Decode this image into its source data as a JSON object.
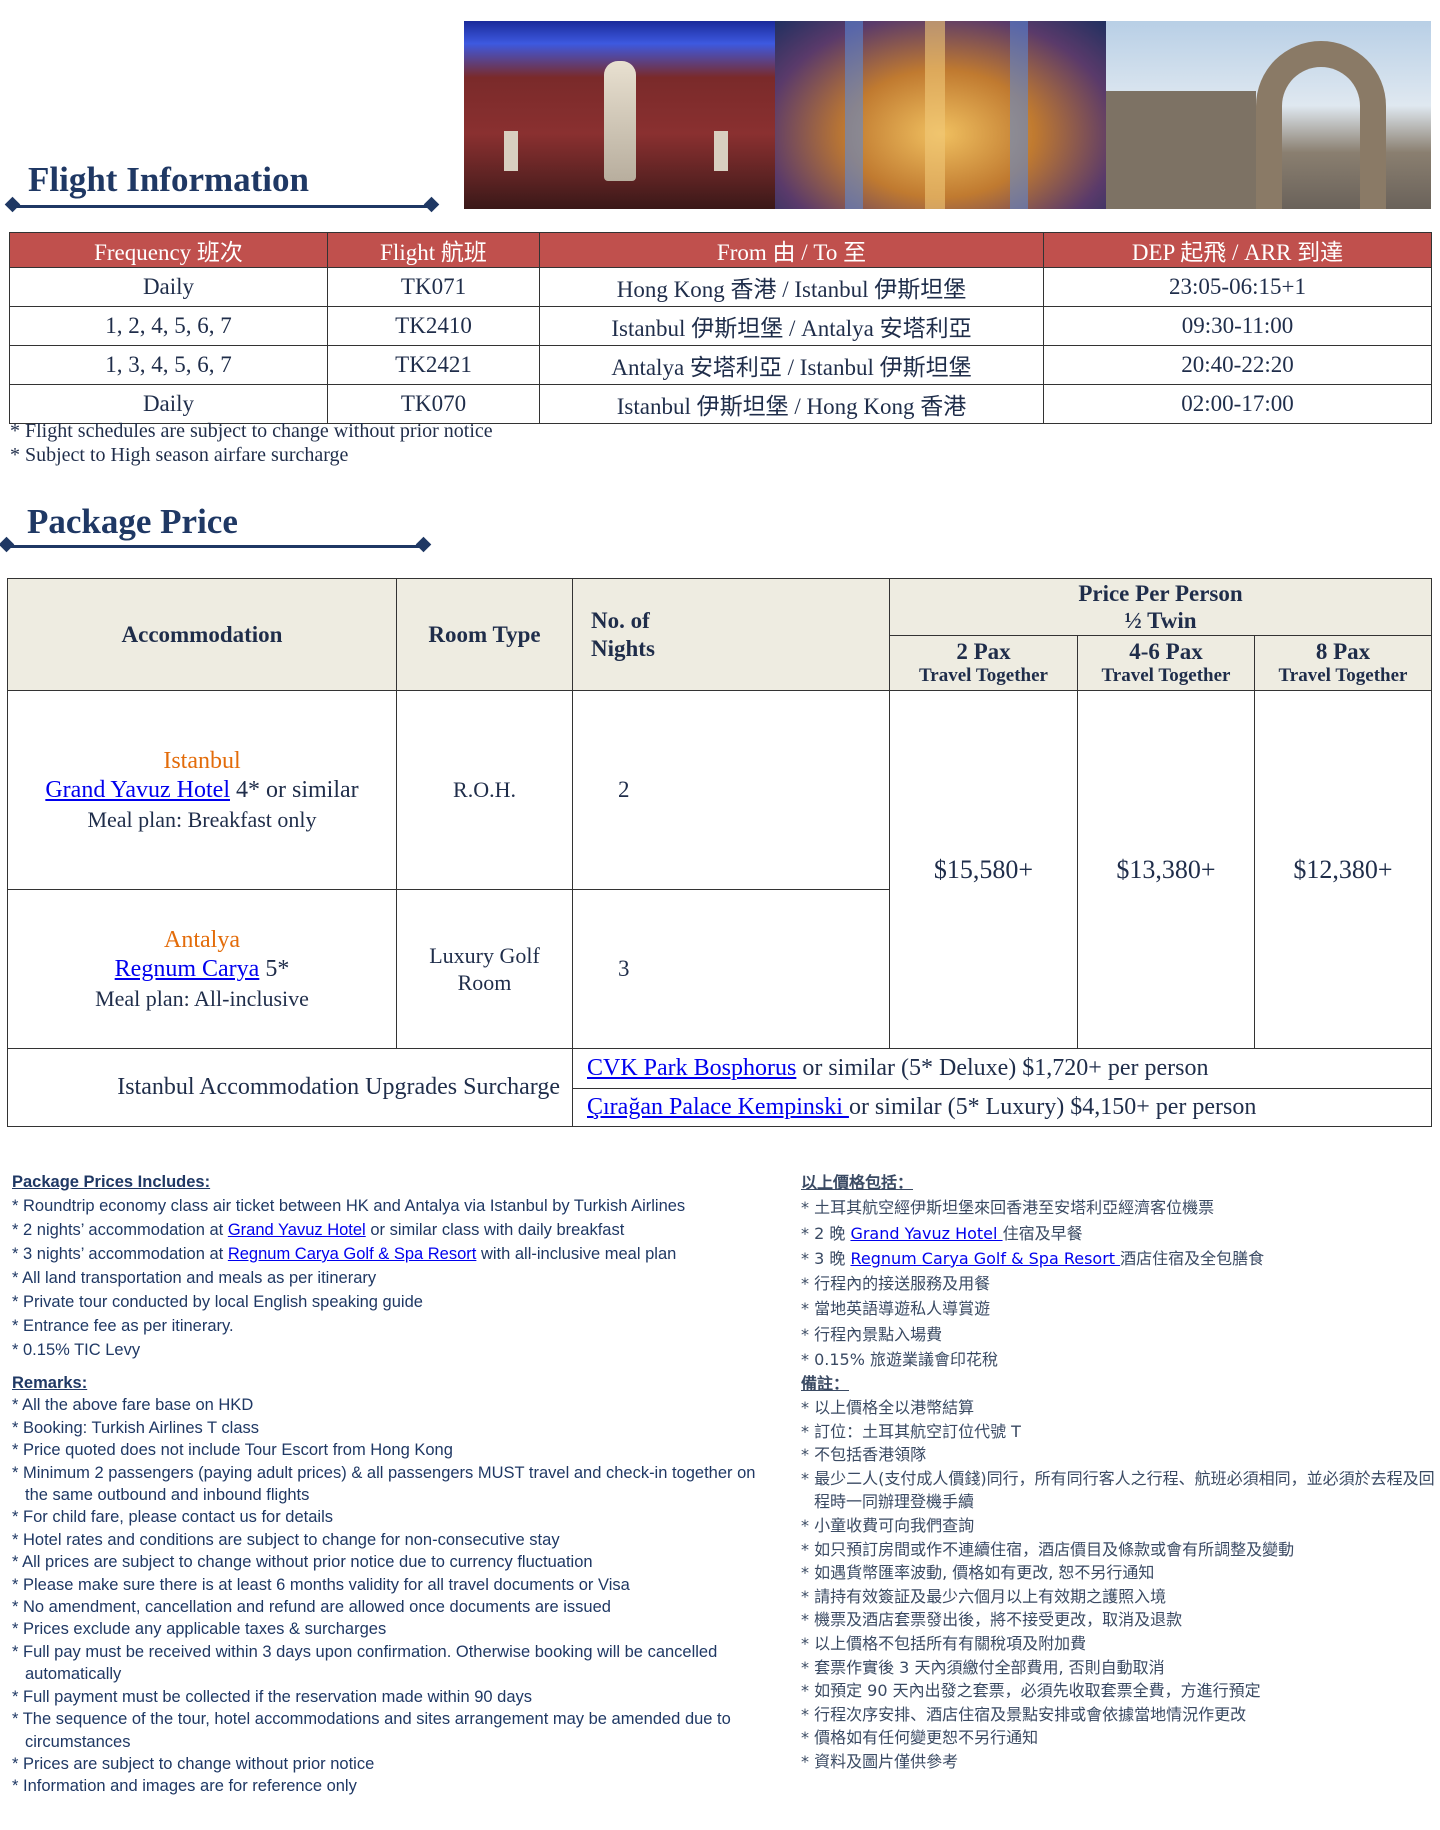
{
  "photos": [
    {
      "icon": "museum-statue-hall-photo"
    },
    {
      "icon": "basilica-cistern-photo"
    },
    {
      "icon": "ancient-arch-ruins-photo"
    }
  ],
  "flight": {
    "title": "Flight Information",
    "headers": [
      "Frequency 班次",
      "Flight 航班",
      "From 由 / To 至",
      "DEP 起飛 / ARR 到達"
    ],
    "rows": [
      [
        "Daily",
        "TK071",
        "Hong Kong 香港 / Istanbul 伊斯坦堡",
        "23:05-06:15+1"
      ],
      [
        "1, 2, 4, 5, 6, 7",
        "TK2410",
        "Istanbul 伊斯坦堡 / Antalya 安塔利亞",
        "09:30-11:00"
      ],
      [
        "1, 3, 4, 5, 6, 7",
        "TK2421",
        "Antalya 安塔利亞 / Istanbul 伊斯坦堡",
        "20:40-22:20"
      ],
      [
        "Daily",
        "TK070",
        "Istanbul 伊斯坦堡 / Hong Kong 香港",
        "02:00-17:00"
      ]
    ],
    "notes": [
      "* Flight schedules are subject to change without prior notice",
      "* Subject to High season airfare surcharge"
    ],
    "header_color": "#c0504d"
  },
  "package": {
    "title": "Package Price",
    "h_accommodation": "Accommodation",
    "h_room": "Room Type",
    "h_nights": "No. of Nights",
    "h_price": "Price Per Person",
    "h_twin": "½ Twin",
    "pax": [
      {
        "a": "2 Pax",
        "b": "Travel Together"
      },
      {
        "a": "4-6 Pax",
        "b": "Travel Together"
      },
      {
        "a": "8 Pax",
        "b": "Travel Together"
      }
    ],
    "hotels": [
      {
        "city": "Istanbul",
        "hotel": "Grand Yavuz Hotel",
        "rating": " 4* or similar",
        "meal": "Meal plan: Breakfast only",
        "room": "R.O.H.",
        "nights": "2"
      },
      {
        "city": "Antalya",
        "hotel": "Regnum Carya",
        "rating": " 5*",
        "meal": "Meal plan: All-inclusive",
        "room": "Luxury Golf Room",
        "nights": "3"
      }
    ],
    "prices": [
      "$15,580+",
      "$13,380+",
      "$12,380+"
    ],
    "surcharge_label": "Istanbul Accommodation Upgrades Surcharge",
    "upgrades": [
      {
        "link": "CVK Park Bosphorus",
        "text": " or similar (5* Deluxe) $1,720+ per person"
      },
      {
        "link": "Çırağan Palace Kempinski ",
        "text": "or similar (5* Luxury) $4,150+ per person"
      }
    ],
    "header_bg": "#eeece1",
    "city_color": "#e36c0a"
  },
  "en": {
    "includes_title": "Package Prices Includes:",
    "includes": [
      {
        "pre": "* Roundtrip economy class air ticket between HK and Antalya via Istanbul by Turkish Airlines"
      },
      {
        "pre": "* 2 nights’ accommodation at ",
        "link": "Grand Yavuz Hotel",
        "post": " or similar class with daily breakfast"
      },
      {
        "pre": "* 3 nights’ accommodation at ",
        "link": "Regnum Carya Golf & Spa Resort",
        "post": " with all-inclusive meal plan"
      },
      {
        "pre": "* All land transportation and meals as per itinerary"
      },
      {
        "pre": "* Private tour conducted by local English speaking guide"
      },
      {
        "pre": "* Entrance fee as per itinerary."
      },
      {
        "pre": "* 0.15% TIC Levy"
      }
    ],
    "remarks_title": "Remarks:",
    "remarks": [
      "* All the above fare base on HKD",
      "* Booking: Turkish Airlines T class",
      "* Price quoted does not include Tour Escort from Hong Kong",
      "* Minimum 2 passengers (paying adult prices) & all passengers MUST travel and check-in together on the same outbound and inbound flights",
      "* For child fare, please contact us for details",
      "* Hotel rates and conditions are subject to change for non-consecutive stay",
      "* All prices are subject to change without prior notice due to currency fluctuation",
      "* Please make sure there is at least 6 months validity for all travel documents or Visa",
      "* No amendment, cancellation and refund are allowed once documents are issued",
      "* Prices exclude any applicable taxes & surcharges",
      "* Full pay must be received within 3 days upon confirmation. Otherwise booking will be cancelled automatically",
      "* Full payment must be collected if the reservation made within 90 days",
      "* The sequence of the tour, hotel accommodations and sites arrangement may be amended due to circumstances",
      "* Prices are subject to change without prior notice",
      "* Information and images are for reference only"
    ]
  },
  "zh": {
    "includes_title": "以上價格包括：",
    "includes": [
      {
        "pre": "* 土耳其航空經伊斯坦堡來回香港至安塔利亞經濟客位機票"
      },
      {
        "pre": "* 2 晚 ",
        "link": "Grand Yavuz Hotel ",
        "post": "住宿及早餐"
      },
      {
        "pre": "* 3 晚 ",
        "link": "Regnum Carya Golf & Spa Resort ",
        "post": "酒店住宿及全包膳食"
      },
      {
        "pre": "* 行程內的接送服務及用餐"
      },
      {
        "pre": "* 當地英語導遊私人導賞遊"
      },
      {
        "pre": "* 行程內景點入場費"
      },
      {
        "pre": "* 0.15% 旅遊業議會印花稅"
      }
    ],
    "remarks_title": "備註：",
    "remarks": [
      "* 以上價格全以港幣結算",
      "* 訂位：土耳其航空訂位代號 T",
      "* 不包括香港領隊",
      "* 最少二人(支付成人價錢)同行，所有同行客人之行程、航班必須相同，並必須於去程及回程時一同辦理登機手續",
      "* 小童收費可向我們查詢",
      "* 如只預訂房間或作不連續住宿，酒店價目及條款或會有所調整及變動",
      "* 如遇貨幣匯率波動, 價格如有更改, 恕不另行通知",
      "* 請持有效簽証及最少六個月以上有效期之護照入境",
      "* 機票及酒店套票發出後，將不接受更改，取消及退款",
      "* 以上價格不包括所有有關稅項及附加費",
      "* 套票作實後 3 天內須繳付全部費用, 否則自動取消",
      "* 如預定 90 天內出發之套票，必須先收取套票全費，方進行預定",
      "* 行程次序安排、酒店住宿及景點安排或會依據當地情況作更改",
      "* 價格如有任何變更恕不另行通知",
      "* 資料及圖片僅供參考"
    ]
  }
}
